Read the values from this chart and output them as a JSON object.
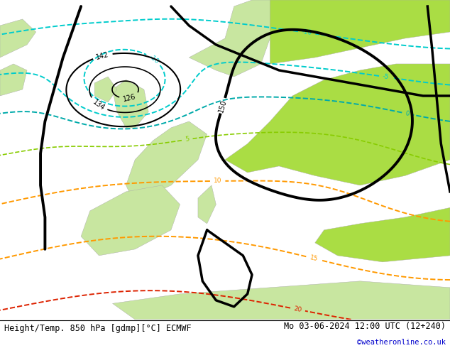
{
  "title_left": "Height/Temp. 850 hPa [gdmp][°C] ECMWF",
  "title_right": "Mo 03-06-2024 12:00 UTC (12+240)",
  "watermark": "©weatheronline.co.uk",
  "fig_width": 6.34,
  "fig_height": 4.9,
  "dpi": 100,
  "title_fontsize": 8.5,
  "watermark_fontsize": 7.5,
  "watermark_color": "#0000cc",
  "land_green_light": "#c8e6a0",
  "land_green_bright": "#aadd44",
  "sea_grey": "#c0c0c0",
  "bg_grey": "#d4d4d4",
  "height_color": "black",
  "temp_cyan": "#00cccc",
  "temp_teal": "#00aaaa",
  "temp_green_yellow": "#88cc00",
  "temp_orange": "#ff9900",
  "temp_red": "#dd2200",
  "temp_magenta": "#cc0077"
}
